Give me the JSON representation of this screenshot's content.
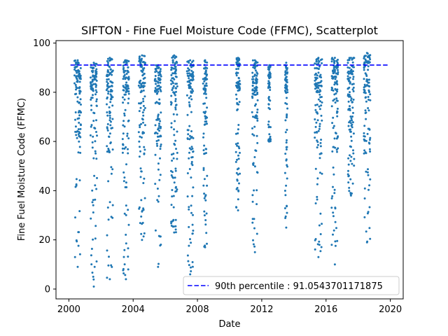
{
  "chart_data": {
    "type": "scatter",
    "title": "SIFTON - Fine Fuel Moisture Code (FFMC), Scatterplot",
    "xlabel": "Date",
    "ylabel": "Fine Fuel Moisture Code (FFMC)",
    "xlim": [
      1999.2,
      2020.8
    ],
    "ylim": [
      -4,
      101
    ],
    "x_ticks": [
      2000,
      2004,
      2008,
      2012,
      2016,
      2020
    ],
    "x_tick_labels": [
      "2000",
      "2004",
      "2008",
      "2012",
      "2016",
      "2020"
    ],
    "y_ticks": [
      0,
      20,
      40,
      60,
      80,
      100
    ],
    "y_tick_labels": [
      "0",
      "20",
      "40",
      "60",
      "80",
      "100"
    ],
    "grid": false,
    "point_color": "#1f77b4",
    "reference_line": {
      "label": "90th percentile : 91.0543701171875",
      "value": 91.0543701171875,
      "color": "#0000ff",
      "style": "dashed",
      "x_range": [
        2000.1,
        2019.9
      ]
    },
    "legend": {
      "placement": "bottom-right"
    },
    "season_clusters": [
      {
        "start": 2000.35,
        "end": 2000.75,
        "min": 9,
        "max": 93
      },
      {
        "start": 2001.35,
        "end": 2001.75,
        "min": 1,
        "max": 92
      },
      {
        "start": 2002.35,
        "end": 2002.75,
        "min": 4,
        "max": 94
      },
      {
        "start": 2003.35,
        "end": 2003.75,
        "min": 4,
        "max": 93
      },
      {
        "start": 2004.35,
        "end": 2004.75,
        "min": 20,
        "max": 95
      },
      {
        "start": 2005.35,
        "end": 2005.75,
        "min": 9,
        "max": 91
      },
      {
        "start": 2006.35,
        "end": 2006.75,
        "min": 23,
        "max": 95
      },
      {
        "start": 2007.35,
        "end": 2007.75,
        "min": 6,
        "max": 93
      },
      {
        "start": 2008.35,
        "end": 2008.6,
        "min": 17,
        "max": 93
      },
      {
        "start": 2010.4,
        "end": 2010.65,
        "min": 32,
        "max": 94
      },
      {
        "start": 2011.4,
        "end": 2011.75,
        "min": 15,
        "max": 93
      },
      {
        "start": 2012.4,
        "end": 2012.55,
        "min": 60,
        "max": 91
      },
      {
        "start": 2013.45,
        "end": 2013.6,
        "min": 25,
        "max": 92
      },
      {
        "start": 2015.3,
        "end": 2015.75,
        "min": 13,
        "max": 94
      },
      {
        "start": 2016.35,
        "end": 2016.75,
        "min": 10,
        "max": 94
      },
      {
        "start": 2017.35,
        "end": 2017.75,
        "min": 38,
        "max": 94
      },
      {
        "start": 2018.35,
        "end": 2018.75,
        "min": 19,
        "max": 96
      }
    ]
  }
}
